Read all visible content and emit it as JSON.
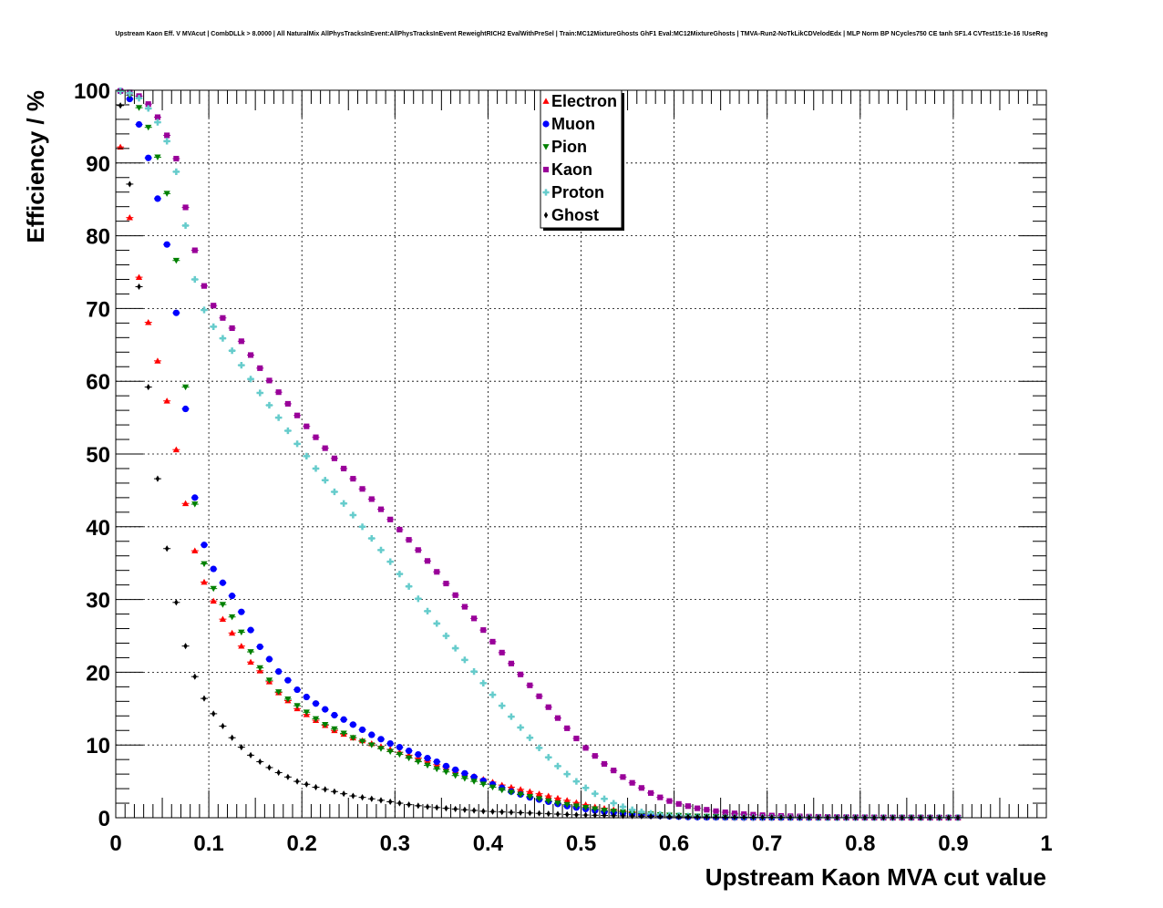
{
  "chart_data": {
    "type": "scatter",
    "title": "Upstream Kaon Eff. V MVAcut | CombDLLk > 8.0000 | All NaturalMix AllPhysTracksInEvent:AllPhysTracksInEvent ReweightRICH2 EvalWithPreSel | Train:MC12MixtureGhosts GhF1 Eval:MC12MixtureGhosts | TMVA-Run2-NoTkLikCDVelodEdx | MLP Norm BP NCycles750 CE tanh SF1.4 CVTest15:1e-16 !UseReg",
    "xlabel": "Upstream Kaon MVA cut value",
    "ylabel": "Efficiency / %",
    "xlim": [
      0,
      1
    ],
    "ylim": [
      0,
      100
    ],
    "x_ticks": [
      "0",
      "0.1",
      "0.2",
      "0.3",
      "0.4",
      "0.5",
      "0.6",
      "0.7",
      "0.8",
      "0.9",
      "1"
    ],
    "y_ticks": [
      "0",
      "10",
      "20",
      "30",
      "40",
      "50",
      "60",
      "70",
      "80",
      "90",
      "100"
    ],
    "grid": true,
    "legend_position": "top-center",
    "x": [
      0.005,
      0.015,
      0.025,
      0.035,
      0.045,
      0.055,
      0.065,
      0.075,
      0.085,
      0.095,
      0.105,
      0.115,
      0.125,
      0.135,
      0.145,
      0.155,
      0.165,
      0.175,
      0.185,
      0.195,
      0.205,
      0.215,
      0.225,
      0.235,
      0.245,
      0.255,
      0.265,
      0.275,
      0.285,
      0.295,
      0.305,
      0.315,
      0.325,
      0.335,
      0.345,
      0.355,
      0.365,
      0.375,
      0.385,
      0.395,
      0.405,
      0.415,
      0.425,
      0.435,
      0.445,
      0.455,
      0.465,
      0.475,
      0.485,
      0.495,
      0.505,
      0.515,
      0.525,
      0.535,
      0.545,
      0.555,
      0.565,
      0.575,
      0.585,
      0.595,
      0.605,
      0.615,
      0.625,
      0.635,
      0.645,
      0.655,
      0.665,
      0.675,
      0.685,
      0.695,
      0.705,
      0.715,
      0.725,
      0.735,
      0.745,
      0.755,
      0.765,
      0.775,
      0.785,
      0.795,
      0.805,
      0.815,
      0.825,
      0.835,
      0.845,
      0.855,
      0.865,
      0.875,
      0.885,
      0.895,
      0.905
    ],
    "series": [
      {
        "name": "Electron",
        "color": "#ff0000",
        "marker": "triangle-up",
        "values": [
          92.2,
          82.5,
          74.3,
          68.1,
          62.8,
          57.3,
          50.6,
          43.2,
          36.7,
          32.4,
          29.8,
          27.3,
          25.4,
          23.6,
          21.4,
          20.2,
          18.7,
          17.2,
          16.1,
          15.0,
          14.2,
          13.4,
          12.7,
          12.0,
          11.5,
          11.0,
          10.6,
          10.2,
          9.8,
          9.4,
          9.0,
          8.6,
          8.2,
          7.8,
          7.3,
          6.9,
          6.5,
          6.1,
          5.7,
          5.3,
          4.9,
          4.5,
          4.2,
          3.9,
          3.6,
          3.3,
          3.0,
          2.7,
          2.4,
          2.1,
          1.8,
          1.5,
          1.3,
          1.1,
          0.9,
          0.8,
          0.6,
          0.5,
          0.4,
          0.3,
          0.25,
          0.2,
          0.15,
          0.1,
          0.08,
          0.06,
          0.05,
          0.04,
          0.03,
          0.02,
          0.02,
          0.01,
          0.01,
          0.01,
          0.01,
          0.01,
          0.01,
          0.01,
          0.01,
          0.01,
          0.01,
          0.01,
          0.01,
          0.01,
          0.01,
          0.01,
          0.01,
          0.01,
          0.01,
          0.01,
          0.01
        ]
      },
      {
        "name": "Muon",
        "color": "#0000ff",
        "marker": "circle",
        "values": [
          99.9,
          98.8,
          95.3,
          90.7,
          85.1,
          78.8,
          69.4,
          56.2,
          44.0,
          37.5,
          34.2,
          32.3,
          30.5,
          28.3,
          25.8,
          23.5,
          21.8,
          20.1,
          18.9,
          17.6,
          16.6,
          15.7,
          14.9,
          14.1,
          13.5,
          12.8,
          12.1,
          11.4,
          10.8,
          10.2,
          9.7,
          9.2,
          8.7,
          8.2,
          7.7,
          7.1,
          6.6,
          6.1,
          5.6,
          5.1,
          4.6,
          4.1,
          3.6,
          3.2,
          2.8,
          2.5,
          2.2,
          1.9,
          1.6,
          1.4,
          1.2,
          1.0,
          0.8,
          0.7,
          0.6,
          0.5,
          0.4,
          0.3,
          0.25,
          0.2,
          0.15,
          0.1,
          0.08,
          0.06,
          0.05,
          0.04,
          0.03,
          0.02,
          0.02,
          0.01,
          0.01,
          0.01,
          0.01,
          0.01,
          0.01,
          0.01,
          0.01,
          0.01,
          0.01,
          0.01,
          0.01,
          0.01,
          0.01,
          0.01,
          0.01,
          0.01,
          0.01,
          0.01,
          0.01,
          0.01,
          0.01
        ]
      },
      {
        "name": "Pion",
        "color": "#008000",
        "marker": "triangle-down",
        "values": [
          99.8,
          99.3,
          97.6,
          94.9,
          90.8,
          85.8,
          76.6,
          59.2,
          43.1,
          34.9,
          31.5,
          29.3,
          27.6,
          25.5,
          22.8,
          20.6,
          18.9,
          17.3,
          16.3,
          15.4,
          14.5,
          13.6,
          12.8,
          12.2,
          11.6,
          11.0,
          10.5,
          10.0,
          9.5,
          9.1,
          8.7,
          8.2,
          7.7,
          7.2,
          6.7,
          6.3,
          5.8,
          5.4,
          5.0,
          4.6,
          4.2,
          3.8,
          3.5,
          3.2,
          2.9,
          2.6,
          2.3,
          2.0,
          1.8,
          1.6,
          1.4,
          1.2,
          1.0,
          0.9,
          0.8,
          0.7,
          0.6,
          0.5,
          0.4,
          0.35,
          0.3,
          0.25,
          0.2,
          0.17,
          0.14,
          0.12,
          0.1,
          0.08,
          0.07,
          0.06,
          0.05,
          0.04,
          0.04,
          0.03,
          0.03,
          0.03,
          0.02,
          0.02,
          0.02,
          0.02,
          0.02,
          0.02,
          0.02,
          0.02,
          0.02,
          0.02,
          0.02,
          0.02,
          0.02,
          0.02,
          0.02
        ]
      },
      {
        "name": "Kaon",
        "color": "#990099",
        "marker": "square",
        "values": [
          99.9,
          99.7,
          99.2,
          98.1,
          96.3,
          93.8,
          90.6,
          83.9,
          78.0,
          73.1,
          70.4,
          68.7,
          67.3,
          65.5,
          63.6,
          61.8,
          60.1,
          58.5,
          56.9,
          55.3,
          53.8,
          52.3,
          50.8,
          49.4,
          48.0,
          46.6,
          45.2,
          43.8,
          42.4,
          41.0,
          39.6,
          38.2,
          36.8,
          35.3,
          33.8,
          32.2,
          30.6,
          29.0,
          27.4,
          25.8,
          24.2,
          22.7,
          21.2,
          19.7,
          18.2,
          16.7,
          15.2,
          13.7,
          12.3,
          10.9,
          9.6,
          8.5,
          7.4,
          6.5,
          5.6,
          4.8,
          4.1,
          3.4,
          2.8,
          2.3,
          1.9,
          1.6,
          1.3,
          1.1,
          0.9,
          0.75,
          0.6,
          0.5,
          0.42,
          0.35,
          0.3,
          0.25,
          0.21,
          0.18,
          0.15,
          0.13,
          0.11,
          0.1,
          0.09,
          0.08,
          0.07,
          0.06,
          0.05,
          0.05,
          0.04,
          0.04,
          0.04,
          0.03,
          0.03,
          0.03,
          0.03
        ]
      },
      {
        "name": "Proton",
        "color": "#66cccc",
        "marker": "cross",
        "values": [
          99.9,
          99.6,
          98.9,
          97.5,
          95.6,
          93.0,
          88.8,
          81.4,
          74.0,
          69.8,
          67.5,
          65.9,
          64.2,
          62.2,
          60.3,
          58.4,
          56.7,
          55.0,
          53.2,
          51.4,
          49.7,
          48.0,
          46.4,
          44.8,
          43.2,
          41.6,
          40.0,
          38.4,
          36.8,
          35.2,
          33.5,
          31.8,
          30.1,
          28.4,
          26.7,
          25.0,
          23.3,
          21.7,
          20.1,
          18.5,
          16.9,
          15.4,
          13.9,
          12.4,
          11.0,
          9.6,
          8.3,
          7.1,
          6.0,
          5.0,
          4.1,
          3.3,
          2.6,
          2.0,
          1.5,
          1.1,
          0.8,
          0.6,
          0.45,
          0.35,
          0.28,
          0.22,
          0.18,
          0.15,
          0.12,
          0.1,
          0.08,
          0.07,
          0.06,
          0.05,
          0.04,
          0.04,
          0.03,
          0.03,
          0.03,
          0.02,
          0.02,
          0.02,
          0.02,
          0.02,
          0.02,
          0.02,
          0.02,
          0.02,
          0.02,
          0.02,
          0.02,
          0.02,
          0.02,
          0.02,
          0.02
        ]
      },
      {
        "name": "Ghost",
        "color": "#000000",
        "marker": "diamond",
        "values": [
          97.9,
          87.1,
          73.0,
          59.2,
          46.6,
          37.0,
          29.6,
          23.6,
          19.4,
          16.4,
          14.3,
          12.6,
          11.0,
          9.7,
          8.6,
          7.7,
          6.9,
          6.2,
          5.6,
          5.0,
          4.6,
          4.2,
          3.9,
          3.6,
          3.3,
          3.0,
          2.8,
          2.6,
          2.4,
          2.2,
          2.0,
          1.8,
          1.65,
          1.5,
          1.4,
          1.3,
          1.2,
          1.1,
          1.0,
          0.9,
          0.85,
          0.8,
          0.75,
          0.7,
          0.65,
          0.6,
          0.55,
          0.5,
          0.45,
          0.4,
          0.37,
          0.34,
          0.31,
          0.28,
          0.25,
          0.23,
          0.21,
          0.19,
          0.17,
          0.15,
          0.14,
          0.13,
          0.12,
          0.11,
          0.1,
          0.09,
          0.08,
          0.07,
          0.06,
          0.05,
          0.05,
          0.04,
          0.04,
          0.03,
          0.03,
          0.03,
          0.03,
          0.02,
          0.02,
          0.02,
          0.02,
          0.02,
          0.02,
          0.02,
          0.02,
          0.02,
          0.02,
          0.02,
          0.02,
          0.02,
          0.02
        ]
      }
    ]
  }
}
